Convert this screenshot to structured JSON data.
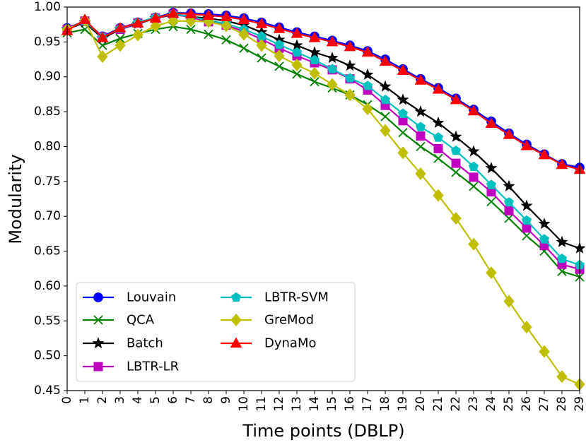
{
  "chart_data": {
    "type": "line",
    "title": "",
    "xlabel": "Time points (DBLP)",
    "ylabel": "Modularity",
    "xlim": [
      0,
      29
    ],
    "ylim": [
      0.45,
      1.0
    ],
    "grid": false,
    "legend_position": "bottom-left",
    "x": [
      0,
      1,
      2,
      3,
      4,
      5,
      6,
      7,
      8,
      9,
      10,
      11,
      12,
      13,
      14,
      15,
      16,
      17,
      18,
      19,
      20,
      21,
      22,
      23,
      24,
      25,
      26,
      27,
      28,
      29
    ],
    "x_tick_labels": [
      "0",
      "1",
      "2",
      "3",
      "4",
      "5",
      "6",
      "7",
      "8",
      "9",
      "10",
      "11",
      "12",
      "13",
      "14",
      "15",
      "16",
      "17",
      "18",
      "19",
      "20",
      "21",
      "22",
      "23",
      "24",
      "25",
      "26",
      "27",
      "28",
      "29"
    ],
    "y_ticks": [
      0.45,
      0.5,
      0.55,
      0.6,
      0.65,
      0.7,
      0.75,
      0.8,
      0.85,
      0.9,
      0.95,
      1.0
    ],
    "y_tick_labels": [
      "0.45",
      "0.50",
      "0.55",
      "0.60",
      "0.65",
      "0.70",
      "0.75",
      "0.80",
      "0.85",
      "0.90",
      "0.95",
      "1.00"
    ],
    "series": [
      {
        "name": "Louvain",
        "color": "#0000ff",
        "marker": "circle",
        "values": [
          0.97,
          0.98,
          0.958,
          0.97,
          0.978,
          0.985,
          0.992,
          0.991,
          0.99,
          0.988,
          0.984,
          0.978,
          0.971,
          0.964,
          0.958,
          0.952,
          0.945,
          0.937,
          0.925,
          0.911,
          0.897,
          0.884,
          0.869,
          0.853,
          0.836,
          0.819,
          0.803,
          0.789,
          0.775,
          0.77
        ]
      },
      {
        "name": "QCA",
        "color": "#008000",
        "marker": "x",
        "values": [
          0.963,
          0.968,
          0.945,
          0.955,
          0.962,
          0.968,
          0.972,
          0.968,
          0.961,
          0.953,
          0.941,
          0.927,
          0.915,
          0.904,
          0.893,
          0.884,
          0.874,
          0.86,
          0.843,
          0.82,
          0.8,
          0.783,
          0.763,
          0.743,
          0.721,
          0.697,
          0.672,
          0.65,
          0.621,
          0.613
        ]
      },
      {
        "name": "Batch",
        "color": "#000000",
        "marker": "star",
        "values": [
          0.968,
          0.978,
          0.955,
          0.968,
          0.976,
          0.984,
          0.989,
          0.986,
          0.984,
          0.98,
          0.974,
          0.964,
          0.953,
          0.945,
          0.935,
          0.927,
          0.916,
          0.903,
          0.886,
          0.867,
          0.85,
          0.834,
          0.814,
          0.793,
          0.769,
          0.743,
          0.715,
          0.689,
          0.663,
          0.654
        ]
      },
      {
        "name": "LBTR-LR",
        "color": "#bf00bf",
        "marker": "square",
        "values": [
          0.968,
          0.98,
          0.957,
          0.968,
          0.977,
          0.984,
          0.99,
          0.985,
          0.979,
          0.974,
          0.965,
          0.954,
          0.941,
          0.93,
          0.92,
          0.91,
          0.897,
          0.881,
          0.859,
          0.837,
          0.815,
          0.797,
          0.776,
          0.756,
          0.735,
          0.708,
          0.683,
          0.658,
          0.631,
          0.624
        ]
      },
      {
        "name": "LBTR-SVM",
        "color": "#00bfbf",
        "marker": "pentagon",
        "values": [
          0.968,
          0.98,
          0.957,
          0.969,
          0.978,
          0.985,
          0.99,
          0.986,
          0.981,
          0.976,
          0.968,
          0.958,
          0.946,
          0.935,
          0.924,
          0.911,
          0.898,
          0.887,
          0.867,
          0.847,
          0.828,
          0.813,
          0.794,
          0.771,
          0.745,
          0.72,
          0.694,
          0.667,
          0.639,
          0.63
        ]
      },
      {
        "name": "GreMod",
        "color": "#bfbf00",
        "marker": "diamond",
        "values": [
          0.968,
          0.981,
          0.929,
          0.945,
          0.96,
          0.973,
          0.98,
          0.98,
          0.979,
          0.973,
          0.961,
          0.945,
          0.93,
          0.917,
          0.905,
          0.889,
          0.874,
          0.854,
          0.823,
          0.791,
          0.761,
          0.73,
          0.697,
          0.66,
          0.619,
          0.578,
          0.541,
          0.506,
          0.47,
          0.459
        ]
      },
      {
        "name": "DynaMo",
        "color": "#ff0000",
        "marker": "triangle",
        "values": [
          0.966,
          0.982,
          0.956,
          0.97,
          0.977,
          0.984,
          0.991,
          0.99,
          0.988,
          0.986,
          0.982,
          0.976,
          0.969,
          0.962,
          0.956,
          0.95,
          0.943,
          0.935,
          0.922,
          0.909,
          0.895,
          0.882,
          0.867,
          0.851,
          0.833,
          0.817,
          0.801,
          0.788,
          0.774,
          0.767
        ]
      }
    ]
  }
}
